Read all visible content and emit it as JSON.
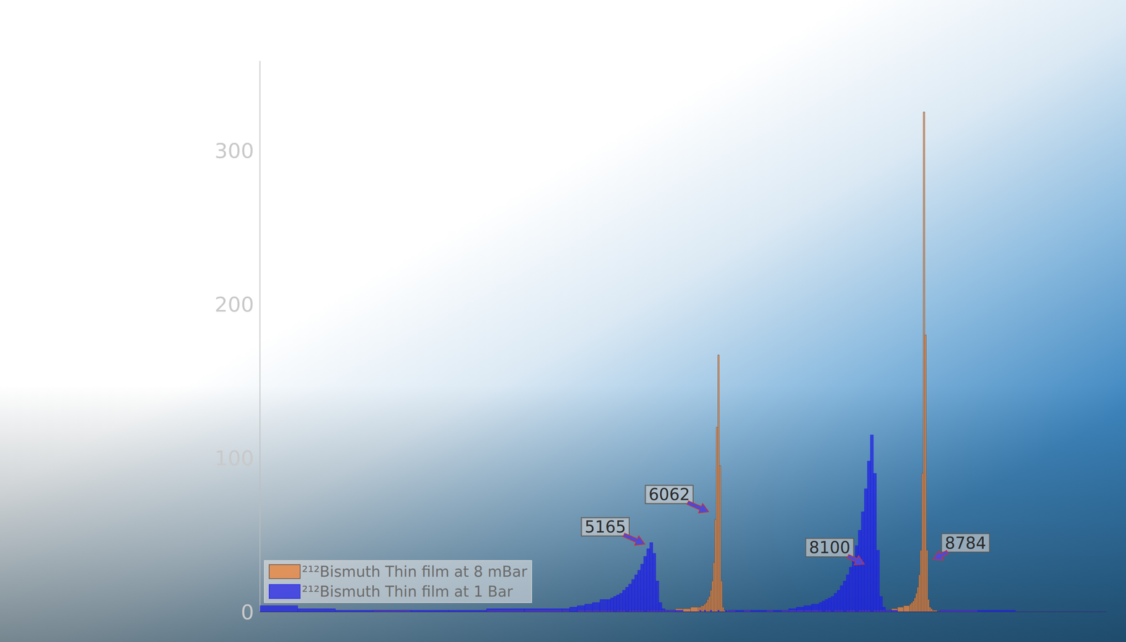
{
  "chart_data": {
    "type": "histogram",
    "bins": [
      0,
      500,
      1000,
      1500,
      2000,
      2500,
      3000,
      3500,
      4000,
      4100,
      4200,
      4300,
      4400,
      4500,
      4600,
      4640,
      4680,
      4720,
      4760,
      4800,
      4840,
      4880,
      4920,
      4960,
      5000,
      5040,
      5080,
      5120,
      5160,
      5200,
      5240,
      5280,
      5320,
      5360,
      5400,
      5500,
      5600,
      5700,
      5800,
      5820,
      5840,
      5860,
      5880,
      5900,
      5920,
      5940,
      5960,
      5980,
      6000,
      6020,
      6040,
      6060,
      6080,
      6100,
      6120,
      6140,
      6160,
      6180,
      6200,
      6300,
      6400,
      6500,
      6600,
      6700,
      6800,
      6900,
      7000,
      7100,
      7200,
      7300,
      7400,
      7440,
      7480,
      7520,
      7560,
      7600,
      7640,
      7680,
      7720,
      7760,
      7800,
      7840,
      7880,
      7920,
      7960,
      8000,
      8040,
      8080,
      8120,
      8160,
      8200,
      8240,
      8280,
      8360,
      8440,
      8520,
      8600,
      8620,
      8640,
      8660,
      8680,
      8700,
      8720,
      8740,
      8760,
      8780,
      8800,
      8820,
      8840,
      8860,
      8880,
      8900,
      8920,
      8940,
      8960,
      8980,
      9000,
      9500,
      10000,
      10500,
      11000,
      11200
    ],
    "series": [
      {
        "name": "²¹²Bismuth Thin film at 8 mBar",
        "color": "#e8853f",
        "values": [
          0,
          0,
          0,
          1,
          0,
          0,
          1,
          1,
          1,
          0,
          1,
          1,
          1,
          1,
          1,
          1,
          0,
          1,
          1,
          1,
          0,
          1,
          1,
          1,
          1,
          1,
          0,
          1,
          1,
          1,
          1,
          1,
          1,
          1,
          1,
          2,
          2,
          3,
          3,
          3,
          4,
          4,
          5,
          6,
          8,
          10,
          14,
          20,
          32,
          60,
          120,
          167,
          95,
          20,
          3,
          1,
          0,
          0,
          1,
          0,
          1,
          0,
          0,
          1,
          0,
          1,
          1,
          1,
          1,
          1,
          1,
          0,
          1,
          1,
          0,
          1,
          1,
          1,
          0,
          1,
          1,
          1,
          0,
          1,
          1,
          1,
          1,
          0,
          1,
          1,
          1,
          1,
          1,
          2,
          3,
          4,
          5,
          6,
          7,
          9,
          12,
          16,
          24,
          40,
          90,
          325,
          180,
          40,
          8,
          3,
          2,
          1,
          1,
          1,
          0,
          0,
          1,
          0,
          0,
          0,
          0
        ]
      },
      {
        "name": "²¹²Bismuth Thin film at 1 Bar",
        "color": "#1f1fe6",
        "values": [
          4,
          2,
          1,
          1,
          1,
          1,
          2,
          2,
          2,
          3,
          4,
          5,
          6,
          8,
          8,
          9,
          10,
          11,
          12,
          14,
          16,
          18,
          21,
          24,
          27,
          31,
          36,
          41,
          45,
          38,
          20,
          6,
          2,
          1,
          1,
          1,
          0,
          0,
          0,
          1,
          0,
          0,
          1,
          0,
          0,
          0,
          1,
          0,
          0,
          0,
          0,
          1,
          0,
          0,
          0,
          0,
          1,
          0,
          1,
          1,
          1,
          1,
          1,
          1,
          1,
          1,
          2,
          3,
          4,
          5,
          6,
          7,
          8,
          9,
          10,
          12,
          14,
          17,
          20,
          24,
          29,
          35,
          43,
          53,
          65,
          80,
          98,
          115,
          90,
          40,
          10,
          3,
          1,
          1,
          0,
          0,
          0,
          0,
          0,
          0,
          0,
          0,
          0,
          0,
          0,
          0,
          0,
          0,
          0,
          0,
          0,
          0,
          0,
          0,
          0,
          0,
          1,
          1,
          0,
          0,
          0
        ]
      }
    ],
    "annotations": [
      {
        "text": "5165",
        "x": 5094,
        "y": 44
      },
      {
        "text": "6062",
        "x": 5940,
        "y": 65
      },
      {
        "text": "8100",
        "x": 8000,
        "y": 31
      },
      {
        "text": "8784",
        "x": 8910,
        "y": 34
      }
    ],
    "xlim": [
      0,
      11200
    ],
    "ylim": [
      0,
      358
    ],
    "yticks": [
      0,
      100,
      200,
      300
    ],
    "tick_labels": "y",
    "grid": false,
    "legend": "lower left"
  }
}
